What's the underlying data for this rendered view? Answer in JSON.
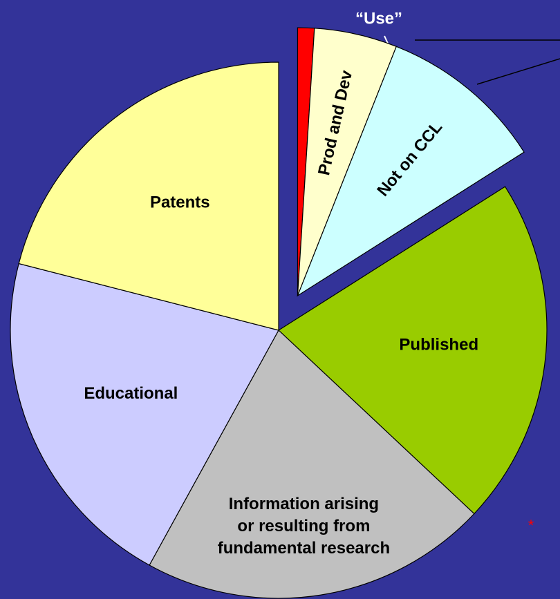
{
  "chart_data": {
    "type": "pie",
    "categories": [
      "“Use”",
      "Prod and Dev",
      "Not on CCL",
      "Published",
      "Information arising\nor resulting from\nfundamental research",
      "Educational",
      "Patents"
    ],
    "values": [
      1,
      5,
      10,
      21,
      21,
      21,
      21
    ],
    "colors": [
      "#ff0000",
      "#ffffcc",
      "#ccffff",
      "#99cc00",
      "#c0c0c0",
      "#ccccff",
      "#ffff99"
    ],
    "exploded": [
      true,
      true,
      true,
      false,
      false,
      false,
      false
    ],
    "footnote_mark": "*"
  }
}
